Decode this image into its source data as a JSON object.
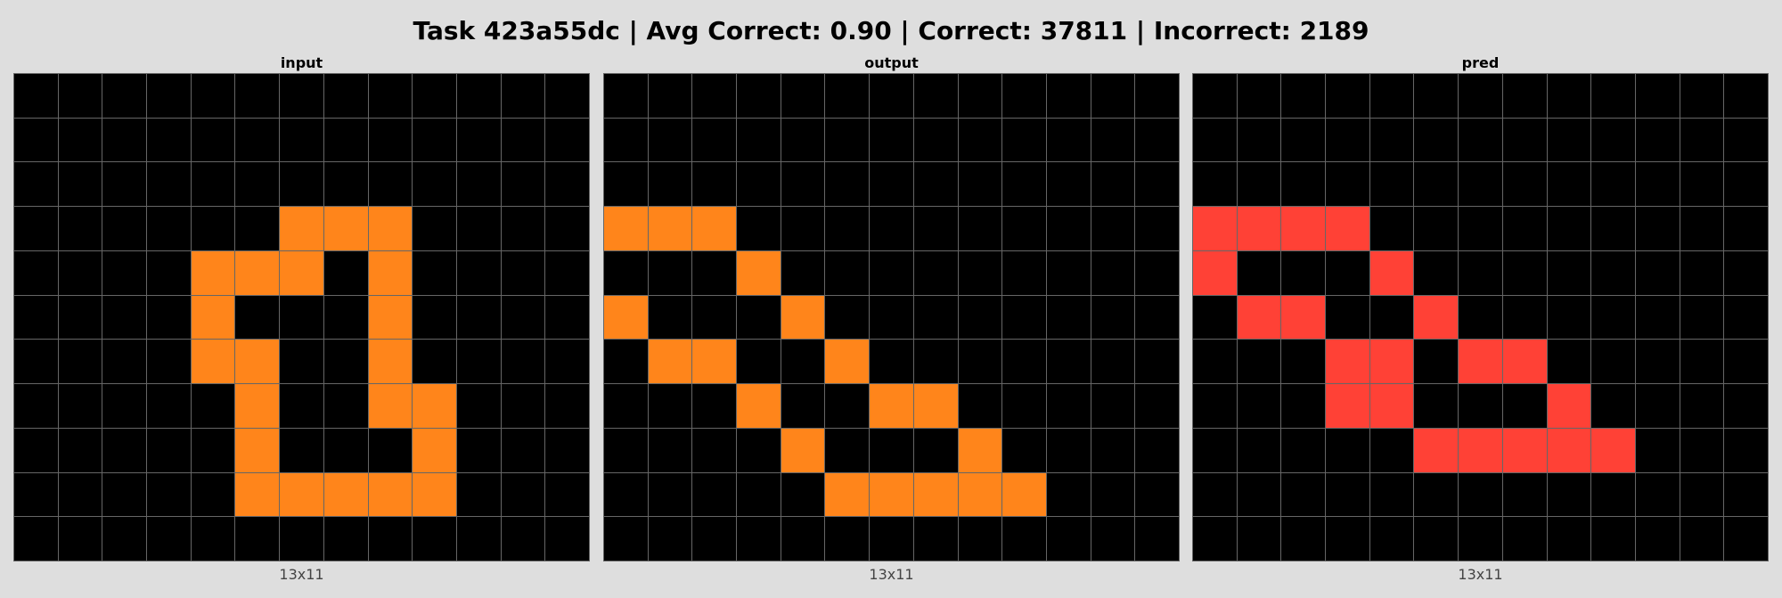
{
  "title": "Task 423a55dc | Avg Correct: 0.90 | Correct: 37811 | Incorrect: 2189",
  "colors": {
    "0": "#000000",
    "7": "#ff851b",
    "2": "#ff4136"
  },
  "panels": [
    {
      "label": "input",
      "size": "13x11",
      "grid": [
        [
          0,
          0,
          0,
          0,
          0,
          0,
          0,
          0,
          0,
          0,
          0,
          0,
          0
        ],
        [
          0,
          0,
          0,
          0,
          0,
          0,
          0,
          0,
          0,
          0,
          0,
          0,
          0
        ],
        [
          0,
          0,
          0,
          0,
          0,
          0,
          0,
          0,
          0,
          0,
          0,
          0,
          0
        ],
        [
          0,
          0,
          0,
          0,
          0,
          0,
          7,
          7,
          7,
          0,
          0,
          0,
          0
        ],
        [
          0,
          0,
          0,
          0,
          7,
          7,
          7,
          0,
          7,
          0,
          0,
          0,
          0
        ],
        [
          0,
          0,
          0,
          0,
          7,
          0,
          0,
          0,
          7,
          0,
          0,
          0,
          0
        ],
        [
          0,
          0,
          0,
          0,
          7,
          7,
          0,
          0,
          7,
          0,
          0,
          0,
          0
        ],
        [
          0,
          0,
          0,
          0,
          0,
          7,
          0,
          0,
          7,
          7,
          0,
          0,
          0
        ],
        [
          0,
          0,
          0,
          0,
          0,
          7,
          0,
          0,
          0,
          7,
          0,
          0,
          0
        ],
        [
          0,
          0,
          0,
          0,
          0,
          7,
          7,
          7,
          7,
          7,
          0,
          0,
          0
        ],
        [
          0,
          0,
          0,
          0,
          0,
          0,
          0,
          0,
          0,
          0,
          0,
          0,
          0
        ]
      ]
    },
    {
      "label": "output",
      "size": "13x11",
      "grid": [
        [
          0,
          0,
          0,
          0,
          0,
          0,
          0,
          0,
          0,
          0,
          0,
          0,
          0
        ],
        [
          0,
          0,
          0,
          0,
          0,
          0,
          0,
          0,
          0,
          0,
          0,
          0,
          0
        ],
        [
          0,
          0,
          0,
          0,
          0,
          0,
          0,
          0,
          0,
          0,
          0,
          0,
          0
        ],
        [
          7,
          7,
          7,
          0,
          0,
          0,
          0,
          0,
          0,
          0,
          0,
          0,
          0
        ],
        [
          0,
          0,
          0,
          7,
          0,
          0,
          0,
          0,
          0,
          0,
          0,
          0,
          0
        ],
        [
          7,
          0,
          0,
          0,
          7,
          0,
          0,
          0,
          0,
          0,
          0,
          0,
          0
        ],
        [
          0,
          7,
          7,
          0,
          0,
          7,
          0,
          0,
          0,
          0,
          0,
          0,
          0
        ],
        [
          0,
          0,
          0,
          7,
          0,
          0,
          7,
          7,
          0,
          0,
          0,
          0,
          0
        ],
        [
          0,
          0,
          0,
          0,
          7,
          0,
          0,
          0,
          7,
          0,
          0,
          0,
          0
        ],
        [
          0,
          0,
          0,
          0,
          0,
          7,
          7,
          7,
          7,
          7,
          0,
          0,
          0
        ],
        [
          0,
          0,
          0,
          0,
          0,
          0,
          0,
          0,
          0,
          0,
          0,
          0,
          0
        ]
      ]
    },
    {
      "label": "pred",
      "size": "13x11",
      "grid": [
        [
          0,
          0,
          0,
          0,
          0,
          0,
          0,
          0,
          0,
          0,
          0,
          0,
          0
        ],
        [
          0,
          0,
          0,
          0,
          0,
          0,
          0,
          0,
          0,
          0,
          0,
          0,
          0
        ],
        [
          0,
          0,
          0,
          0,
          0,
          0,
          0,
          0,
          0,
          0,
          0,
          0,
          0
        ],
        [
          2,
          2,
          2,
          2,
          0,
          0,
          0,
          0,
          0,
          0,
          0,
          0,
          0
        ],
        [
          2,
          0,
          0,
          0,
          2,
          0,
          0,
          0,
          0,
          0,
          0,
          0,
          0
        ],
        [
          0,
          2,
          2,
          0,
          0,
          2,
          0,
          0,
          0,
          0,
          0,
          0,
          0
        ],
        [
          0,
          0,
          0,
          2,
          2,
          0,
          2,
          2,
          0,
          0,
          0,
          0,
          0
        ],
        [
          0,
          0,
          0,
          2,
          2,
          0,
          0,
          0,
          2,
          0,
          0,
          0,
          0
        ],
        [
          0,
          0,
          0,
          0,
          0,
          2,
          2,
          2,
          2,
          2,
          0,
          0,
          0
        ],
        [
          0,
          0,
          0,
          0,
          0,
          0,
          0,
          0,
          0,
          0,
          0,
          0,
          0
        ],
        [
          0,
          0,
          0,
          0,
          0,
          0,
          0,
          0,
          0,
          0,
          0,
          0,
          0
        ]
      ]
    }
  ]
}
